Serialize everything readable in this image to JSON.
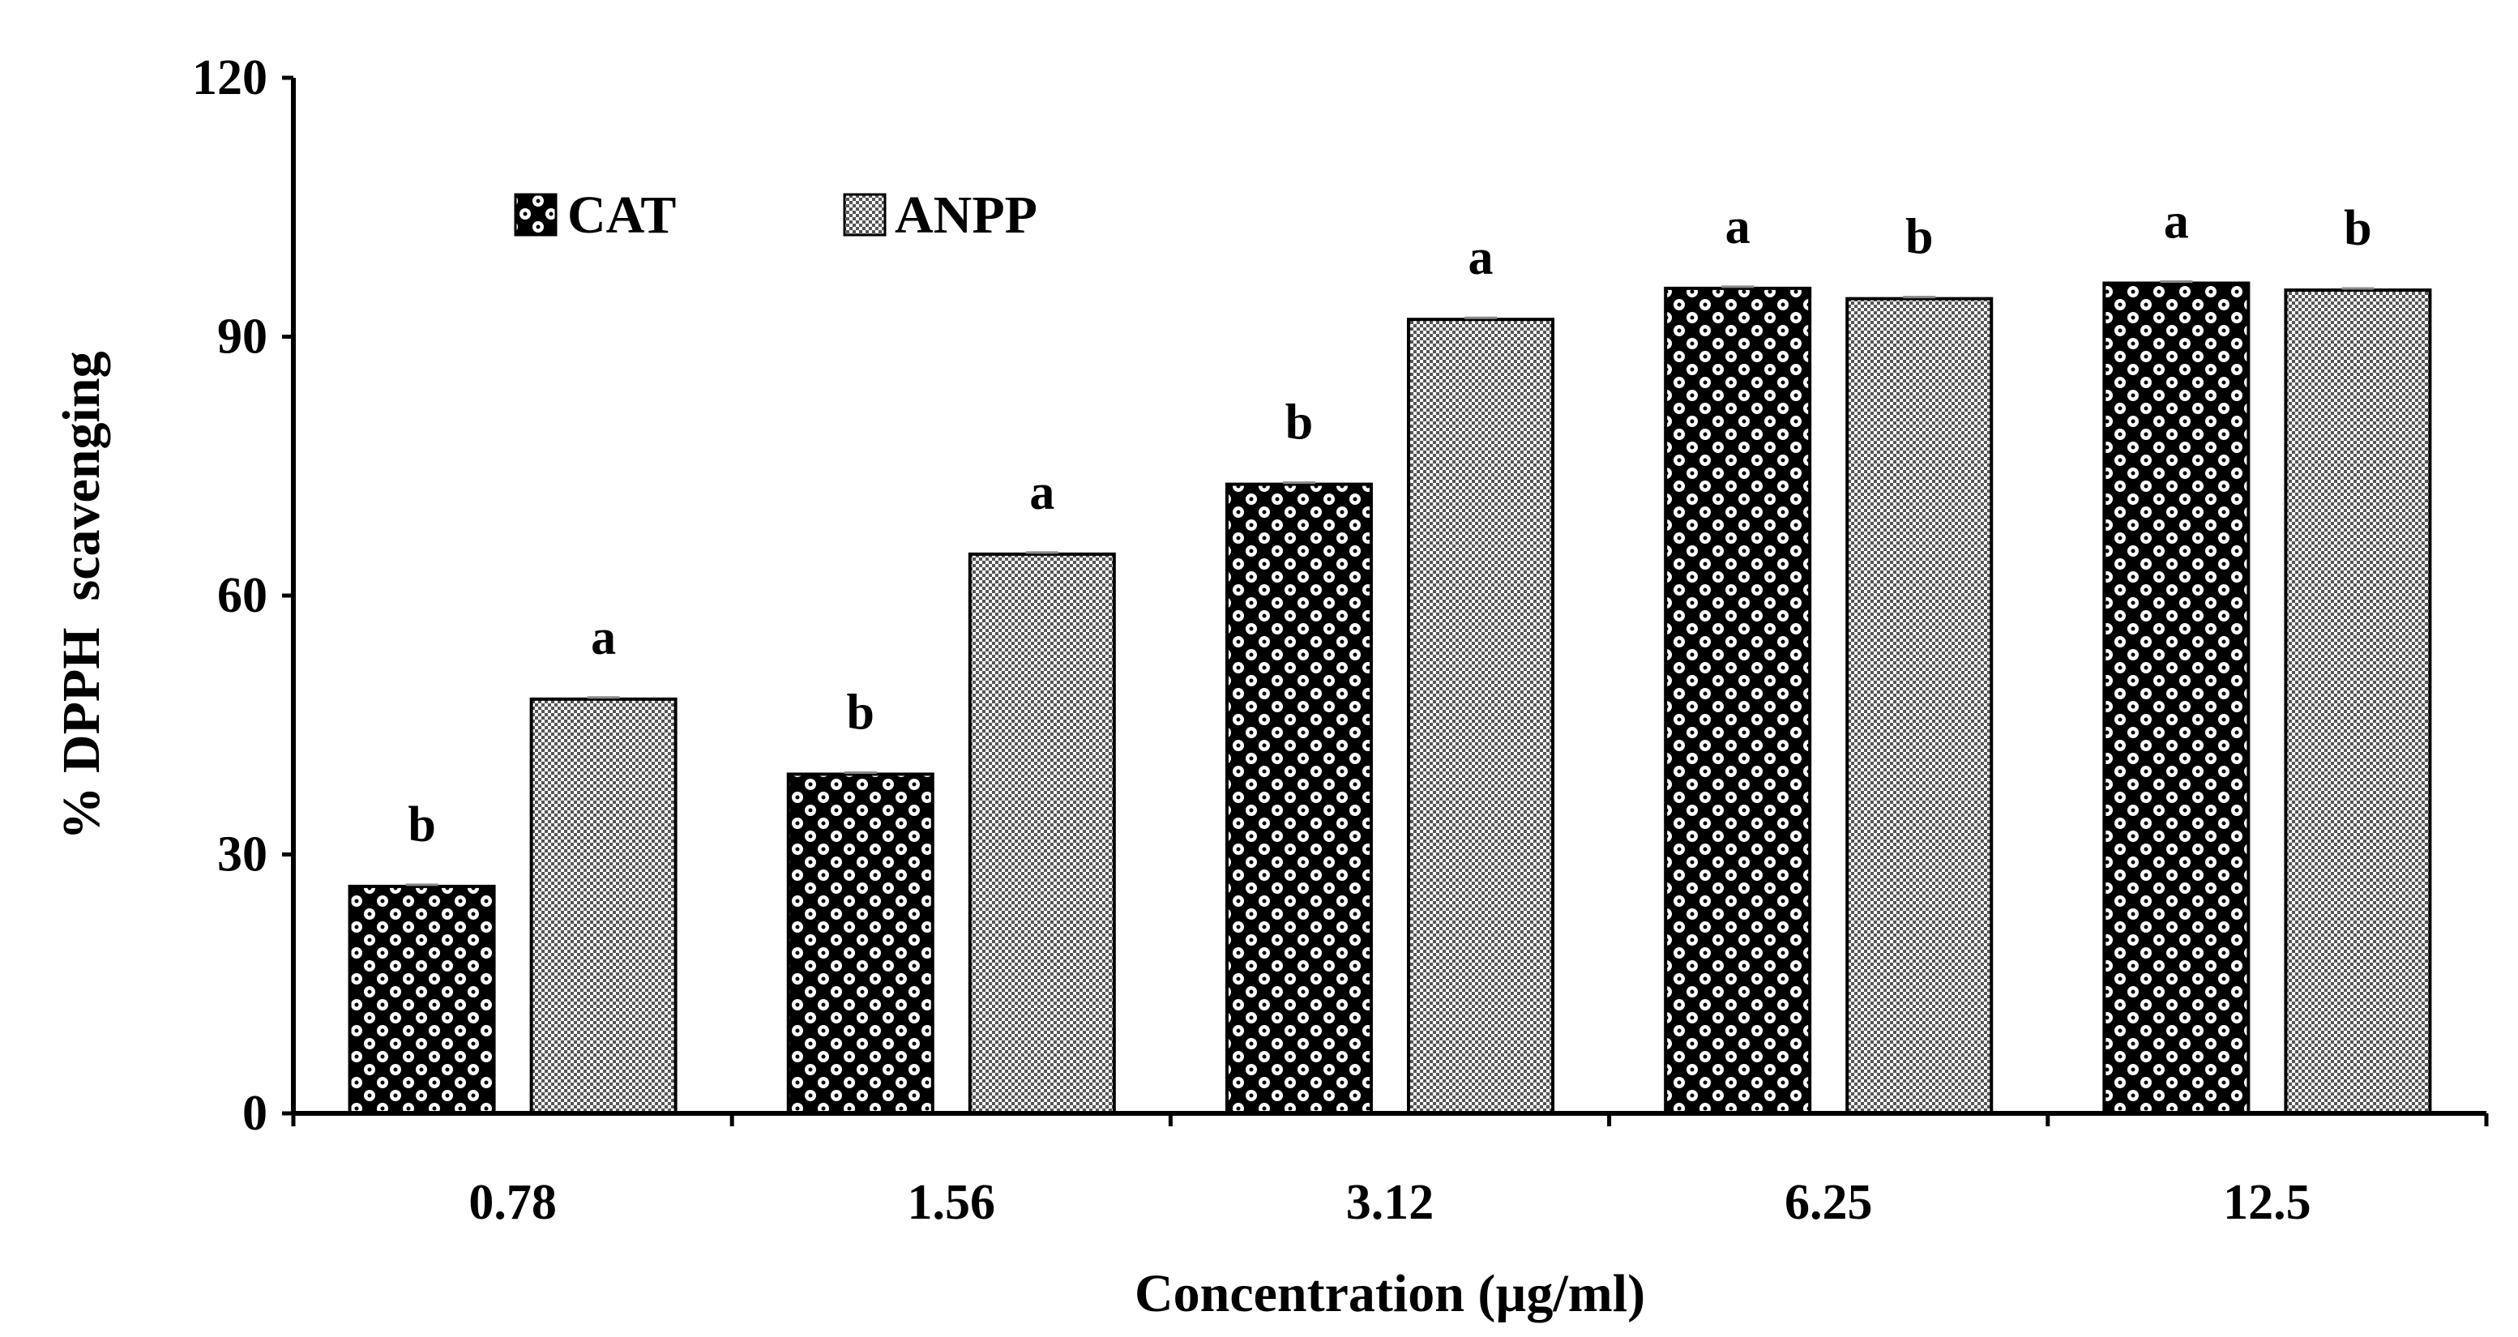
{
  "chart_data": {
    "type": "bar",
    "title": "",
    "xlabel": "Concentration (µg/ml)",
    "ylabel": "% DPPH  scavenging",
    "ylim": [
      0,
      120
    ],
    "yticks": [
      "0",
      "30",
      "60",
      "90",
      "120"
    ],
    "categories": [
      "0.78",
      "1.56",
      "3.12",
      "6.25",
      "12.5"
    ],
    "series": [
      {
        "name": "CAT",
        "values": [
          26.3,
          39.3,
          72.9,
          95.6,
          96.2
        ],
        "significance": [
          "b",
          "b",
          "b",
          "a",
          "a"
        ],
        "pattern": "dotted-checker"
      },
      {
        "name": "ANPP",
        "values": [
          48.0,
          64.8,
          92.0,
          94.4,
          95.4
        ],
        "significance": [
          "a",
          "a",
          "a",
          "b",
          "b"
        ],
        "pattern": "fine-checker"
      }
    ],
    "legend_position": "top-left",
    "grid": false
  }
}
